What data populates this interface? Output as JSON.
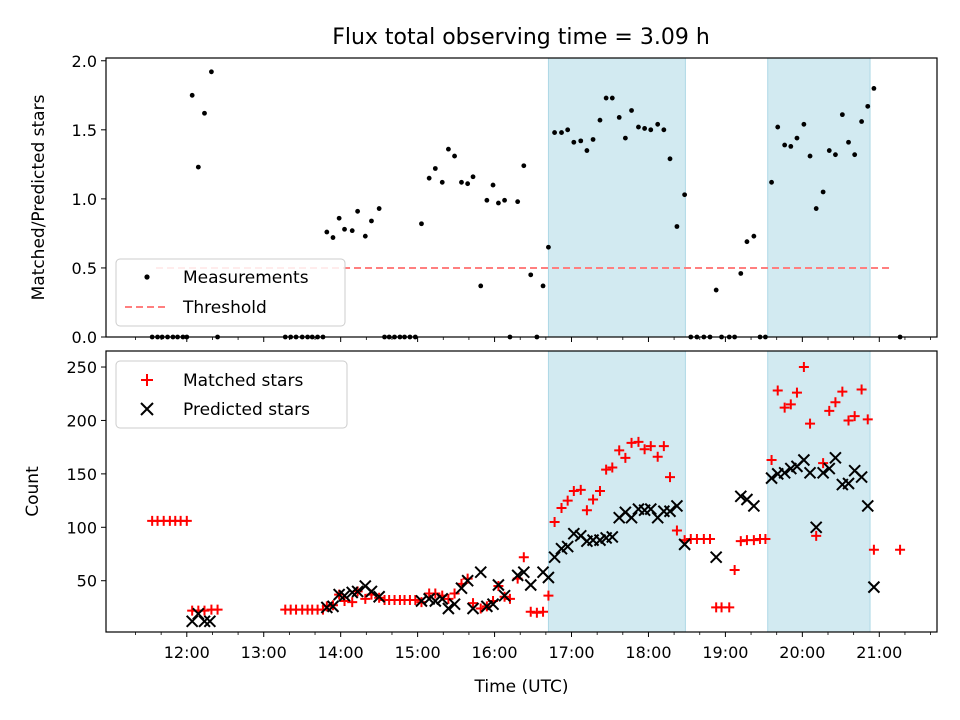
{
  "chart_data": {
    "type": "scatter",
    "title": "Flux total observing time = 3.09 h",
    "xlabel": "Time (UTC)",
    "x_ticks": [
      "12:00",
      "13:00",
      "14:00",
      "15:00",
      "16:00",
      "17:00",
      "18:00",
      "19:00",
      "20:00",
      "21:00"
    ],
    "xlim_hours": [
      10.95,
      21.75
    ],
    "shaded_intervals_hours": [
      [
        16.7,
        18.48
      ],
      [
        19.55,
        20.88
      ]
    ],
    "shade_color": "#add8e6",
    "top": {
      "ylabel": "Matched/Predicted stars",
      "ylim": [
        0,
        2.02
      ],
      "y_ticks": [
        "0.0",
        "0.5",
        "1.0",
        "1.5",
        "2.0"
      ],
      "threshold": 0.5,
      "threshold_range_hours": [
        11.6,
        21.15
      ],
      "threshold_color": "#ff7f7f",
      "legend": [
        "Measurements",
        "Threshold"
      ],
      "measurements": [
        [
          11.55,
          0
        ],
        [
          11.62,
          0
        ],
        [
          11.68,
          0
        ],
        [
          11.75,
          0
        ],
        [
          11.82,
          0
        ],
        [
          11.88,
          0
        ],
        [
          11.95,
          0
        ],
        [
          12.0,
          0
        ],
        [
          12.07,
          1.75
        ],
        [
          12.15,
          1.23
        ],
        [
          12.23,
          1.62
        ],
        [
          12.32,
          1.92
        ],
        [
          12.4,
          0
        ],
        [
          13.28,
          0
        ],
        [
          13.35,
          0
        ],
        [
          13.42,
          0
        ],
        [
          13.5,
          0
        ],
        [
          13.57,
          0
        ],
        [
          13.63,
          0
        ],
        [
          13.7,
          0
        ],
        [
          13.77,
          0
        ],
        [
          13.82,
          0.76
        ],
        [
          13.9,
          0.72
        ],
        [
          13.98,
          0.86
        ],
        [
          14.05,
          0.78
        ],
        [
          14.15,
          0.77
        ],
        [
          14.22,
          0.91
        ],
        [
          14.32,
          0.73
        ],
        [
          14.4,
          0.84
        ],
        [
          14.5,
          0.93
        ],
        [
          14.57,
          0
        ],
        [
          14.63,
          0
        ],
        [
          14.7,
          0
        ],
        [
          14.77,
          0
        ],
        [
          14.83,
          0
        ],
        [
          14.9,
          0
        ],
        [
          14.97,
          0
        ],
        [
          15.05,
          0.82
        ],
        [
          15.15,
          1.15
        ],
        [
          15.23,
          1.22
        ],
        [
          15.32,
          1.12
        ],
        [
          15.4,
          1.36
        ],
        [
          15.48,
          1.31
        ],
        [
          15.57,
          1.12
        ],
        [
          15.65,
          1.11
        ],
        [
          15.72,
          1.16
        ],
        [
          15.82,
          0.37
        ],
        [
          15.9,
          0.99
        ],
        [
          15.98,
          1.1
        ],
        [
          16.05,
          0.97
        ],
        [
          16.13,
          0.99
        ],
        [
          16.2,
          0
        ],
        [
          16.3,
          0.98
        ],
        [
          16.38,
          1.24
        ],
        [
          16.47,
          0.45
        ],
        [
          16.55,
          0
        ],
        [
          16.63,
          0.37
        ],
        [
          16.7,
          0.65
        ],
        [
          16.78,
          1.48
        ],
        [
          16.87,
          1.48
        ],
        [
          16.95,
          1.5
        ],
        [
          17.03,
          1.41
        ],
        [
          17.12,
          1.42
        ],
        [
          17.2,
          1.35
        ],
        [
          17.28,
          1.43
        ],
        [
          17.37,
          1.57
        ],
        [
          17.45,
          1.73
        ],
        [
          17.53,
          1.73
        ],
        [
          17.62,
          1.59
        ],
        [
          17.7,
          1.44
        ],
        [
          17.78,
          1.64
        ],
        [
          17.87,
          1.52
        ],
        [
          17.95,
          1.51
        ],
        [
          18.03,
          1.5
        ],
        [
          18.12,
          1.54
        ],
        [
          18.2,
          1.5
        ],
        [
          18.28,
          1.29
        ],
        [
          18.37,
          0.8
        ],
        [
          18.47,
          1.03
        ],
        [
          18.55,
          0
        ],
        [
          18.63,
          0
        ],
        [
          18.72,
          0
        ],
        [
          18.8,
          0
        ],
        [
          18.88,
          0.34
        ],
        [
          18.95,
          0
        ],
        [
          19.05,
          0
        ],
        [
          19.12,
          0
        ],
        [
          19.2,
          0.46
        ],
        [
          19.28,
          0.69
        ],
        [
          19.37,
          0.73
        ],
        [
          19.45,
          0
        ],
        [
          19.52,
          0
        ],
        [
          19.6,
          1.12
        ],
        [
          19.68,
          1.52
        ],
        [
          19.77,
          1.39
        ],
        [
          19.85,
          1.38
        ],
        [
          19.93,
          1.44
        ],
        [
          20.02,
          1.54
        ],
        [
          20.1,
          1.31
        ],
        [
          20.18,
          0.93
        ],
        [
          20.27,
          1.05
        ],
        [
          20.35,
          1.35
        ],
        [
          20.43,
          1.32
        ],
        [
          20.52,
          1.61
        ],
        [
          20.6,
          1.41
        ],
        [
          20.68,
          1.32
        ],
        [
          20.77,
          1.56
        ],
        [
          20.85,
          1.67
        ],
        [
          20.93,
          1.8
        ],
        [
          21.27,
          0
        ]
      ]
    },
    "bottom": {
      "ylabel": "Count",
      "ylim": [
        2,
        265
      ],
      "y_ticks": [
        "50",
        "100",
        "150",
        "200",
        "250"
      ],
      "legend": [
        "Matched stars",
        "Predicted stars"
      ],
      "matched_color": "#ff0000",
      "predicted_color": "#000000",
      "matched": [
        [
          11.55,
          106
        ],
        [
          11.62,
          106
        ],
        [
          11.7,
          106
        ],
        [
          11.78,
          106
        ],
        [
          11.85,
          106
        ],
        [
          11.92,
          106
        ],
        [
          12.0,
          106
        ],
        [
          12.07,
          22
        ],
        [
          12.15,
          22
        ],
        [
          12.23,
          22
        ],
        [
          12.32,
          23
        ],
        [
          12.4,
          23
        ],
        [
          13.28,
          23
        ],
        [
          13.35,
          23
        ],
        [
          13.42,
          23
        ],
        [
          13.5,
          23
        ],
        [
          13.57,
          23
        ],
        [
          13.63,
          23
        ],
        [
          13.7,
          23
        ],
        [
          13.77,
          23
        ],
        [
          13.82,
          26
        ],
        [
          13.9,
          27
        ],
        [
          13.98,
          37
        ],
        [
          14.05,
          31
        ],
        [
          14.15,
          30
        ],
        [
          14.22,
          40
        ],
        [
          14.32,
          33
        ],
        [
          14.4,
          37
        ],
        [
          14.5,
          34
        ],
        [
          14.57,
          32
        ],
        [
          14.63,
          32
        ],
        [
          14.7,
          32
        ],
        [
          14.77,
          32
        ],
        [
          14.83,
          32
        ],
        [
          14.9,
          32
        ],
        [
          14.97,
          32
        ],
        [
          15.05,
          30
        ],
        [
          15.15,
          38
        ],
        [
          15.23,
          38
        ],
        [
          15.32,
          36
        ],
        [
          15.4,
          33
        ],
        [
          15.48,
          38
        ],
        [
          15.57,
          47
        ],
        [
          15.65,
          52
        ],
        [
          15.72,
          29
        ],
        [
          15.82,
          24
        ],
        [
          15.9,
          26
        ],
        [
          15.98,
          31
        ],
        [
          16.05,
          45
        ],
        [
          16.13,
          35
        ],
        [
          16.2,
          33
        ],
        [
          16.3,
          52
        ],
        [
          16.38,
          72
        ],
        [
          16.47,
          21
        ],
        [
          16.55,
          20
        ],
        [
          16.63,
          21
        ],
        [
          16.7,
          36
        ],
        [
          16.78,
          105
        ],
        [
          16.87,
          118
        ],
        [
          16.95,
          125
        ],
        [
          17.03,
          134
        ],
        [
          17.12,
          135
        ],
        [
          17.2,
          116
        ],
        [
          17.28,
          126
        ],
        [
          17.37,
          134
        ],
        [
          17.45,
          154
        ],
        [
          17.53,
          156
        ],
        [
          17.62,
          172
        ],
        [
          17.7,
          165
        ],
        [
          17.78,
          179
        ],
        [
          17.87,
          180
        ],
        [
          17.95,
          173
        ],
        [
          18.03,
          176
        ],
        [
          18.12,
          166
        ],
        [
          18.2,
          176
        ],
        [
          18.28,
          147
        ],
        [
          18.37,
          97
        ],
        [
          18.47,
          88
        ],
        [
          18.55,
          89
        ],
        [
          18.63,
          89
        ],
        [
          18.72,
          89
        ],
        [
          18.8,
          89
        ],
        [
          18.88,
          25
        ],
        [
          18.95,
          25
        ],
        [
          19.05,
          25
        ],
        [
          19.12,
          60
        ],
        [
          19.2,
          87
        ],
        [
          19.28,
          88
        ],
        [
          19.37,
          88
        ],
        [
          19.45,
          89
        ],
        [
          19.52,
          89
        ],
        [
          19.6,
          163
        ],
        [
          19.68,
          228
        ],
        [
          19.77,
          212
        ],
        [
          19.85,
          215
        ],
        [
          19.93,
          226
        ],
        [
          20.02,
          250
        ],
        [
          20.1,
          197
        ],
        [
          20.18,
          92
        ],
        [
          20.27,
          160
        ],
        [
          20.35,
          209
        ],
        [
          20.43,
          217
        ],
        [
          20.52,
          227
        ],
        [
          20.6,
          200
        ],
        [
          20.68,
          204
        ],
        [
          20.77,
          229
        ],
        [
          20.85,
          201
        ],
        [
          20.93,
          79
        ],
        [
          21.27,
          79
        ]
      ],
      "predicted": [
        [
          12.07,
          12
        ],
        [
          12.15,
          19
        ],
        [
          12.23,
          12
        ],
        [
          12.3,
          12
        ],
        [
          13.82,
          25
        ],
        [
          13.9,
          26
        ],
        [
          13.98,
          37
        ],
        [
          14.05,
          36
        ],
        [
          14.15,
          39
        ],
        [
          14.22,
          40
        ],
        [
          14.32,
          45
        ],
        [
          14.4,
          40
        ],
        [
          14.5,
          35
        ],
        [
          15.05,
          31
        ],
        [
          15.15,
          33
        ],
        [
          15.23,
          31
        ],
        [
          15.32,
          33
        ],
        [
          15.4,
          24
        ],
        [
          15.48,
          28
        ],
        [
          15.57,
          43
        ],
        [
          15.65,
          50
        ],
        [
          15.72,
          24
        ],
        [
          15.82,
          58
        ],
        [
          15.9,
          26
        ],
        [
          15.98,
          28
        ],
        [
          16.05,
          46
        ],
        [
          16.13,
          36
        ],
        [
          16.3,
          55
        ],
        [
          16.38,
          58
        ],
        [
          16.47,
          46
        ],
        [
          16.63,
          58
        ],
        [
          16.7,
          53
        ],
        [
          16.78,
          72
        ],
        [
          16.87,
          80
        ],
        [
          16.95,
          82
        ],
        [
          17.03,
          94
        ],
        [
          17.12,
          92
        ],
        [
          17.2,
          87
        ],
        [
          17.28,
          88
        ],
        [
          17.37,
          88
        ],
        [
          17.45,
          90
        ],
        [
          17.53,
          91
        ],
        [
          17.62,
          109
        ],
        [
          17.7,
          114
        ],
        [
          17.78,
          109
        ],
        [
          17.87,
          117
        ],
        [
          17.95,
          116
        ],
        [
          18.03,
          117
        ],
        [
          18.12,
          109
        ],
        [
          18.2,
          115
        ],
        [
          18.28,
          115
        ],
        [
          18.37,
          120
        ],
        [
          18.47,
          84
        ],
        [
          18.88,
          72
        ],
        [
          19.2,
          129
        ],
        [
          19.28,
          126
        ],
        [
          19.37,
          120
        ],
        [
          19.6,
          146
        ],
        [
          19.68,
          150
        ],
        [
          19.77,
          151
        ],
        [
          19.85,
          155
        ],
        [
          19.93,
          157
        ],
        [
          20.02,
          163
        ],
        [
          20.1,
          151
        ],
        [
          20.18,
          100
        ],
        [
          20.27,
          151
        ],
        [
          20.35,
          155
        ],
        [
          20.43,
          165
        ],
        [
          20.52,
          140
        ],
        [
          20.6,
          141
        ],
        [
          20.68,
          153
        ],
        [
          20.77,
          147
        ],
        [
          20.85,
          120
        ],
        [
          20.93,
          44
        ]
      ]
    }
  }
}
